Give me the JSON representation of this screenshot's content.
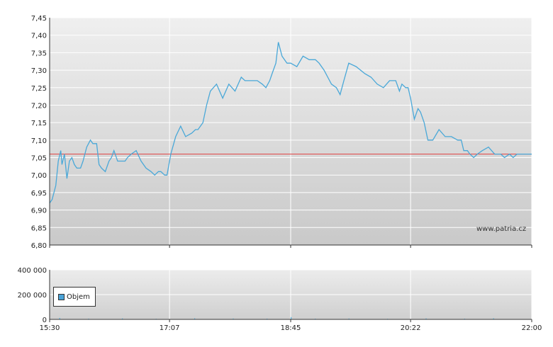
{
  "watermark": "www.patria.cz",
  "legend": {
    "label": "Objem"
  },
  "colors": {
    "price_line": "#4aa8d8",
    "reference_line": "#e04040",
    "volume": "#58b4e0",
    "grid": "#ffffff"
  },
  "chart_data": [
    {
      "type": "line",
      "title": "",
      "xlabel": "",
      "ylabel": "",
      "ylim": [
        6.8,
        7.45
      ],
      "y_ticks": [
        "7,45",
        "7,40",
        "7,35",
        "7,30",
        "7,25",
        "7,20",
        "7,15",
        "7,10",
        "7,05",
        "7,00",
        "6,95",
        "6,90",
        "6,85",
        "6,80"
      ],
      "x_ticks": [
        "15:30",
        "17:07",
        "18:45",
        "20:22",
        "22:00"
      ],
      "xlim": [
        "15:30",
        "22:00"
      ],
      "grid": true,
      "reference_line": 7.06,
      "series": [
        {
          "values_time": [
            "15:30",
            "15:32",
            "15:35",
            "15:37",
            "15:39",
            "15:40",
            "15:42",
            "15:44",
            "15:46",
            "15:48",
            "15:50",
            "15:52",
            "15:55",
            "15:57",
            "16:00",
            "16:03",
            "16:05",
            "16:08",
            "16:10",
            "16:12",
            "16:15",
            "16:18",
            "16:20",
            "16:22",
            "16:25",
            "16:28",
            "16:31",
            "16:33",
            "16:36",
            "16:40",
            "16:44",
            "16:48",
            "16:52",
            "16:55",
            "16:58",
            "17:00",
            "17:03",
            "17:05",
            "17:08",
            "17:12",
            "17:16",
            "17:20",
            "17:25",
            "17:28",
            "17:30",
            "17:32",
            "17:34",
            "17:37",
            "17:40",
            "17:45",
            "17:50",
            "17:55",
            "18:00",
            "18:05",
            "18:08",
            "18:12",
            "18:16",
            "18:18",
            "18:22",
            "18:25",
            "18:28",
            "18:30",
            "18:33",
            "18:35",
            "18:38",
            "18:42",
            "18:45",
            "18:50",
            "18:55",
            "19:00",
            "19:05",
            "19:08",
            "19:12",
            "19:15",
            "19:18",
            "19:22",
            "19:25",
            "19:28",
            "19:32",
            "19:38",
            "19:45",
            "19:50",
            "19:55",
            "20:00",
            "20:05",
            "20:10",
            "20:13",
            "20:15",
            "20:18",
            "20:20",
            "20:22",
            "20:25",
            "20:28",
            "20:30",
            "20:33",
            "20:36",
            "20:40",
            "20:45",
            "20:50",
            "20:55",
            "21:00",
            "21:03",
            "21:05",
            "21:08",
            "21:10",
            "21:13",
            "21:16",
            "21:20",
            "21:25",
            "21:30",
            "21:33",
            "21:35",
            "21:38",
            "21:42",
            "21:45",
            "21:48",
            "21:52",
            "21:55",
            "22:00"
          ],
          "values": [
            6.92,
            6.93,
            6.97,
            7.04,
            7.07,
            7.03,
            7.06,
            6.99,
            7.04,
            7.05,
            7.03,
            7.02,
            7.02,
            7.04,
            7.08,
            7.1,
            7.09,
            7.09,
            7.03,
            7.02,
            7.01,
            7.04,
            7.05,
            7.07,
            7.04,
            7.04,
            7.04,
            7.05,
            7.06,
            7.07,
            7.04,
            7.02,
            7.01,
            7.0,
            7.01,
            7.01,
            7.0,
            7.0,
            7.06,
            7.11,
            7.14,
            7.11,
            7.12,
            7.13,
            7.13,
            7.14,
            7.15,
            7.2,
            7.24,
            7.26,
            7.22,
            7.26,
            7.24,
            7.28,
            7.27,
            7.27,
            7.27,
            7.27,
            7.26,
            7.25,
            7.27,
            7.29,
            7.32,
            7.38,
            7.34,
            7.32,
            7.32,
            7.31,
            7.34,
            7.33,
            7.33,
            7.32,
            7.3,
            7.28,
            7.26,
            7.25,
            7.23,
            7.27,
            7.32,
            7.31,
            7.29,
            7.28,
            7.26,
            7.25,
            7.27,
            7.27,
            7.24,
            7.26,
            7.25,
            7.25,
            7.22,
            7.16,
            7.19,
            7.18,
            7.15,
            7.1,
            7.1,
            7.13,
            7.11,
            7.11,
            7.1,
            7.1,
            7.07,
            7.07,
            7.06,
            7.05,
            7.06,
            7.07,
            7.08,
            7.06,
            7.06,
            7.06,
            7.05,
            7.06,
            7.05,
            7.06,
            7.06,
            7.06,
            7.06
          ]
        }
      ]
    },
    {
      "type": "bar",
      "title": "",
      "xlabel": "",
      "ylabel": "",
      "ylim": [
        0,
        400000
      ],
      "y_ticks": [
        "400 000",
        "200 000",
        "0"
      ],
      "x_ticks": [
        "15:30",
        "17:07",
        "18:45",
        "20:22",
        "22:00"
      ],
      "series": [
        {
          "name": "Objem",
          "x_fraction": [
            0.02,
            0.08,
            0.15,
            0.22,
            0.3,
            0.38,
            0.45,
            0.5,
            0.55,
            0.62,
            0.7,
            0.78,
            0.86,
            0.92
          ],
          "values": [
            12000,
            6000,
            8000,
            5000,
            9000,
            7000,
            6000,
            18000,
            6000,
            7000,
            5000,
            8000,
            6000,
            9000
          ]
        }
      ]
    }
  ]
}
